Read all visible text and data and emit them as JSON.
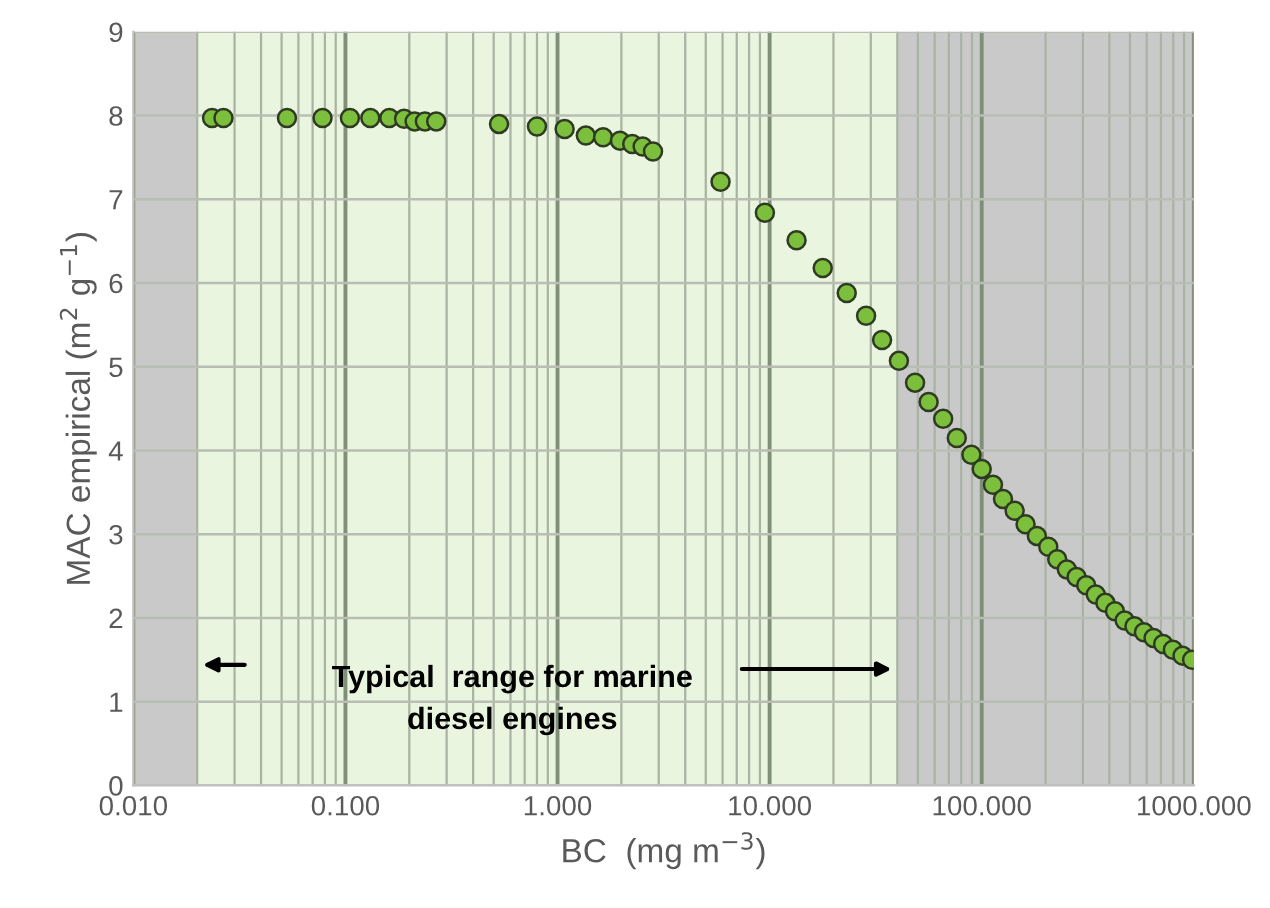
{
  "chart_data": {
    "type": "scatter",
    "xlabel": "BC  (mg m$^{−3}$)",
    "ylabel": "MAC empirical (m$^{2}$ g$^{−1}$)",
    "log": "x",
    "grid": true,
    "marker": "circle",
    "xlim": [
      0.01,
      1000
    ],
    "xticks": [
      {
        "value": 0.01,
        "label": "0.010"
      },
      {
        "value": 0.1,
        "label": "0.100"
      },
      {
        "value": 1,
        "label": "1.000"
      },
      {
        "value": 10,
        "label": "10.000"
      },
      {
        "value": 100,
        "label": "100.000"
      },
      {
        "value": 1000,
        "label": "1000.000"
      }
    ],
    "ylim": [
      0,
      9
    ],
    "yticks": [
      0,
      1,
      2,
      3,
      4,
      5,
      6,
      7,
      8,
      9
    ],
    "bands": [
      {
        "axis": "x",
        "from": 0.01,
        "to": 0.02,
        "color": "#c9c9c9"
      },
      {
        "axis": "x",
        "from": 0.02,
        "to": 40,
        "color": "#e9f5de",
        "label": "Typical  range for marine\ndiesel engines"
      },
      {
        "axis": "x",
        "from": 40,
        "to": 1000,
        "color": "#c9c9c9"
      }
    ],
    "series": [
      {
        "color": "#7cbf3c",
        "x": [
          0.0235,
          0.0266,
          0.053,
          0.078,
          0.105,
          0.131,
          0.161,
          0.189,
          0.212,
          0.237,
          0.268,
          0.53,
          0.8,
          1.08,
          1.36,
          1.64,
          1.97,
          2.25,
          2.52,
          2.82,
          5.87,
          9.5,
          13.4,
          17.8,
          23.1,
          28.5,
          33.9,
          40.7,
          48.5,
          56.2,
          65.8,
          76.3,
          89.4,
          100,
          113,
          126,
          143,
          161,
          182,
          206,
          227,
          252,
          280,
          311,
          345,
          383,
          425,
          472,
          525,
          582,
          646,
          717,
          797,
          885,
          982
        ],
        "values": [
          7.97,
          7.97,
          7.97,
          7.97,
          7.97,
          7.97,
          7.97,
          7.96,
          7.93,
          7.93,
          7.93,
          7.9,
          7.87,
          7.84,
          7.76,
          7.74,
          7.7,
          7.66,
          7.63,
          7.57,
          7.21,
          6.84,
          6.51,
          6.18,
          5.88,
          5.61,
          5.32,
          5.07,
          4.81,
          4.58,
          4.38,
          4.15,
          3.95,
          3.78,
          3.59,
          3.42,
          3.28,
          3.12,
          2.98,
          2.85,
          2.7,
          2.58,
          2.49,
          2.39,
          2.28,
          2.18,
          2.08,
          1.97,
          1.9,
          1.83,
          1.76,
          1.69,
          1.62,
          1.55,
          1.5
        ]
      }
    ]
  }
}
